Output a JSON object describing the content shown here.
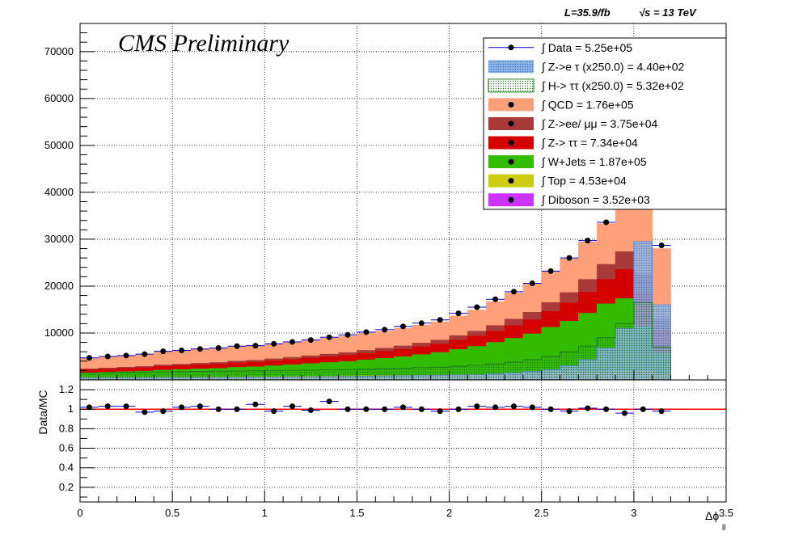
{
  "header": {
    "lumi_text": "L=35.9/fb",
    "energy_text": "√s = 13 TeV",
    "cms_label": "CMS Preliminary"
  },
  "colors": {
    "ztau_etau": "#5b8fd6",
    "htautau": "#1f7a1f",
    "qcd": "#ffa07a",
    "zll": "#a83a3a",
    "ztt": "#d40000",
    "wjets": "#33bb00",
    "top": "#cccc11",
    "diboson": "#cc33ff",
    "data_line": "#0000cc",
    "ratio_line": "#ff0000"
  },
  "chart_data": [
    {
      "type": "area",
      "subtype": "stacked-histogram",
      "xlim": [
        0,
        3.5
      ],
      "ylim": [
        0,
        76000
      ],
      "x_ticks": [
        0,
        0.5,
        1,
        1.5,
        2,
        2.5,
        3,
        3.5
      ],
      "x_tick_labels": [
        "0",
        "0.5",
        "1",
        "1.5",
        "2",
        "2.5",
        "3",
        "3.5"
      ],
      "y_ticks": [
        10000,
        20000,
        30000,
        40000,
        50000,
        60000,
        70000
      ],
      "y_tick_labels": [
        "10000",
        "20000",
        "30000",
        "40000",
        "50000",
        "60000",
        "70000"
      ],
      "grid": true,
      "bin_width": 0.1,
      "bin_centers": [
        0.05,
        0.15,
        0.25,
        0.35,
        0.45,
        0.55,
        0.65,
        0.75,
        0.85,
        0.95,
        1.05,
        1.15,
        1.25,
        1.35,
        1.45,
        1.55,
        1.65,
        1.75,
        1.85,
        1.95,
        2.05,
        2.15,
        2.25,
        2.35,
        2.45,
        2.55,
        2.65,
        2.75,
        2.85,
        2.95,
        3.05,
        3.15
      ],
      "data": [
        4700,
        5000,
        5200,
        5500,
        6100,
        6300,
        6600,
        6800,
        7200,
        7300,
        7700,
        8100,
        8500,
        9100,
        9600,
        10200,
        10700,
        11400,
        12100,
        12800,
        14200,
        15500,
        17200,
        18800,
        20600,
        23200,
        26000,
        29700,
        33600,
        38000,
        41000,
        28700
      ],
      "stack": [
        {
          "key": "diboson",
          "values": [
            80,
            80,
            80,
            80,
            80,
            90,
            90,
            90,
            90,
            90,
            90,
            90,
            90,
            100,
            100,
            100,
            100,
            100,
            100,
            110,
            110,
            110,
            110,
            120,
            120,
            120,
            130,
            130,
            140,
            150,
            160,
            110
          ]
        },
        {
          "key": "top",
          "values": [
            450,
            470,
            480,
            500,
            520,
            540,
            560,
            580,
            600,
            620,
            640,
            670,
            700,
            720,
            750,
            780,
            820,
            850,
            900,
            950,
            1000,
            1050,
            1100,
            1150,
            1200,
            1300,
            1400,
            1500,
            1600,
            1700,
            1800,
            1200
          ]
        },
        {
          "key": "wjets",
          "values": [
            1000,
            1100,
            1200,
            1300,
            1500,
            1600,
            1700,
            1800,
            2000,
            2100,
            2300,
            2500,
            2700,
            2900,
            3100,
            3400,
            3700,
            4000,
            4400,
            4800,
            5400,
            6000,
            6800,
            7600,
            8500,
            9800,
            11000,
            12600,
            14500,
            15500,
            9500,
            4500
          ]
        },
        {
          "key": "ztt",
          "values": [
            620,
            650,
            690,
            720,
            800,
            830,
            870,
            900,
            950,
            980,
            1040,
            1100,
            1170,
            1250,
            1320,
            1400,
            1480,
            1580,
            1680,
            1790,
            2000,
            2200,
            2400,
            2700,
            3000,
            3400,
            3900,
            4500,
            5200,
            6200,
            7000,
            4800
          ]
        },
        {
          "key": "zll",
          "values": [
            220,
            230,
            250,
            270,
            300,
            310,
            330,
            350,
            380,
            400,
            430,
            460,
            500,
            540,
            580,
            620,
            670,
            720,
            780,
            850,
            950,
            1050,
            1200,
            1400,
            1600,
            1900,
            2200,
            2700,
            3200,
            3800,
            4200,
            2400
          ],
          "note": ""
        },
        {
          "key": "qcd",
          "values": [
            2200,
            2350,
            2450,
            2600,
            2850,
            2950,
            3050,
            3080,
            3200,
            3200,
            3250,
            3300,
            3350,
            3440,
            3500,
            3600,
            3630,
            3750,
            3840,
            3900,
            4200,
            4500,
            5100,
            5600,
            6200,
            6700,
            7200,
            8000,
            8700,
            10400,
            19000,
            15000
          ]
        }
      ],
      "signals": [
        {
          "key": "ztau_etau",
          "values": [
            420,
            440,
            450,
            470,
            500,
            520,
            540,
            560,
            580,
            600,
            620,
            650,
            680,
            710,
            740,
            780,
            820,
            860,
            910,
            970,
            1050,
            1150,
            1300,
            1500,
            1800,
            2200,
            3000,
            4300,
            6800,
            11000,
            29500,
            16000
          ]
        },
        {
          "key": "htautau",
          "values": [
            1500,
            1550,
            1600,
            1650,
            1700,
            1750,
            1800,
            1850,
            1900,
            1950,
            2000,
            2050,
            2100,
            2150,
            2200,
            2300,
            2400,
            2500,
            2600,
            2700,
            2900,
            3100,
            3400,
            3800,
            4300,
            5000,
            6000,
            7200,
            9000,
            12000,
            16500,
            7000
          ]
        }
      ],
      "legend_position": "top-right",
      "legend": [
        {
          "key": "data",
          "label": "∫ Data = 5.25e+05",
          "style": "marker"
        },
        {
          "key": "ztau_etau",
          "label": "∫ Z->e τ (x250.0) = 4.40e+02",
          "style": "hatch-blue"
        },
        {
          "key": "htautau",
          "label": "∫ H-> ττ (x250.0) = 5.32e+02",
          "style": "hatch-green"
        },
        {
          "key": "qcd",
          "label": "∫ QCD = 1.76e+05",
          "style": "fill"
        },
        {
          "key": "zll",
          "label": "∫ Z->ee/ μμ = 3.75e+04",
          "style": "fill"
        },
        {
          "key": "ztt",
          "label": "∫ Z-> ττ = 7.34e+04",
          "style": "fill"
        },
        {
          "key": "wjets",
          "label": "∫ W+Jets = 1.87e+05",
          "style": "fill"
        },
        {
          "key": "top",
          "label": "∫ Top = 4.53e+04",
          "style": "fill"
        },
        {
          "key": "diboson",
          "label": "∫ Diboson = 3.52e+03",
          "style": "fill"
        }
      ]
    },
    {
      "type": "scatter",
      "subtype": "ratio",
      "ylabel": "Data/MC",
      "xlabel": "Δϕ",
      "xlabel_subscript": "ll",
      "xlim": [
        0,
        3.5
      ],
      "ylim": [
        0.05,
        1.3
      ],
      "y_ticks": [
        0.2,
        0.4,
        0.6,
        0.8,
        1,
        1.2
      ],
      "y_tick_labels": [
        "0.2",
        "0.4",
        "0.6",
        "0.8",
        "1",
        "1.2"
      ],
      "reference_line": 1,
      "x": [
        0.05,
        0.15,
        0.25,
        0.35,
        0.45,
        0.55,
        0.65,
        0.75,
        0.85,
        0.95,
        1.05,
        1.15,
        1.25,
        1.35,
        1.45,
        1.55,
        1.65,
        1.75,
        1.85,
        1.95,
        2.05,
        2.15,
        2.25,
        2.35,
        2.45,
        2.55,
        2.65,
        2.75,
        2.85,
        2.95,
        3.05,
        3.15
      ],
      "y": [
        1.02,
        1.03,
        1.03,
        0.97,
        0.98,
        1.02,
        1.03,
        1.0,
        1.0,
        1.05,
        0.98,
        1.03,
        0.99,
        1.08,
        1.0,
        1.0,
        1.0,
        1.02,
        1.0,
        0.98,
        1.0,
        1.03,
        1.02,
        1.03,
        1.02,
        1.0,
        0.98,
        1.01,
        1.0,
        0.96,
        1.0,
        0.98
      ]
    }
  ]
}
